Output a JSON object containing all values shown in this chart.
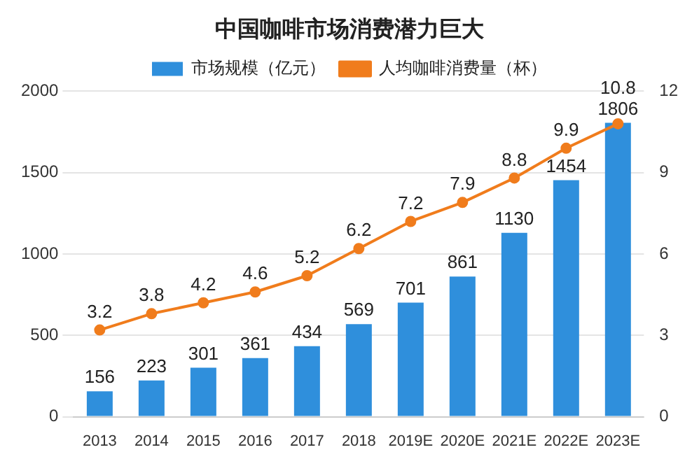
{
  "chart_data": {
    "type": "bar",
    "title": "中国咖啡市场消费潜力巨大",
    "categories": [
      "2013",
      "2014",
      "2015",
      "2016",
      "2017",
      "2018",
      "2019E",
      "2020E",
      "2021E",
      "2022E",
      "2023E"
    ],
    "series": [
      {
        "name": "市场规模（亿元）",
        "color": "#2f8fdc",
        "values": [
          156,
          223,
          301,
          361,
          434,
          569,
          701,
          861,
          1130,
          1454,
          1806
        ]
      },
      {
        "name": "人均咖啡消费量（杯）",
        "type": "line",
        "axis": "y2",
        "color": "#f07c1c",
        "values": [
          3.2,
          3.8,
          4.2,
          4.6,
          5.2,
          6.2,
          7.2,
          7.9,
          8.8,
          9.9,
          10.8
        ]
      }
    ],
    "ylim": [
      0,
      2000
    ],
    "yticks": [
      0,
      500,
      1000,
      1500,
      2000
    ],
    "y2lim": [
      0,
      12
    ],
    "y2ticks": [
      0,
      3,
      6,
      9,
      12
    ],
    "grid": "y",
    "legend": "top",
    "marker": "circle",
    "data_labels": true
  }
}
